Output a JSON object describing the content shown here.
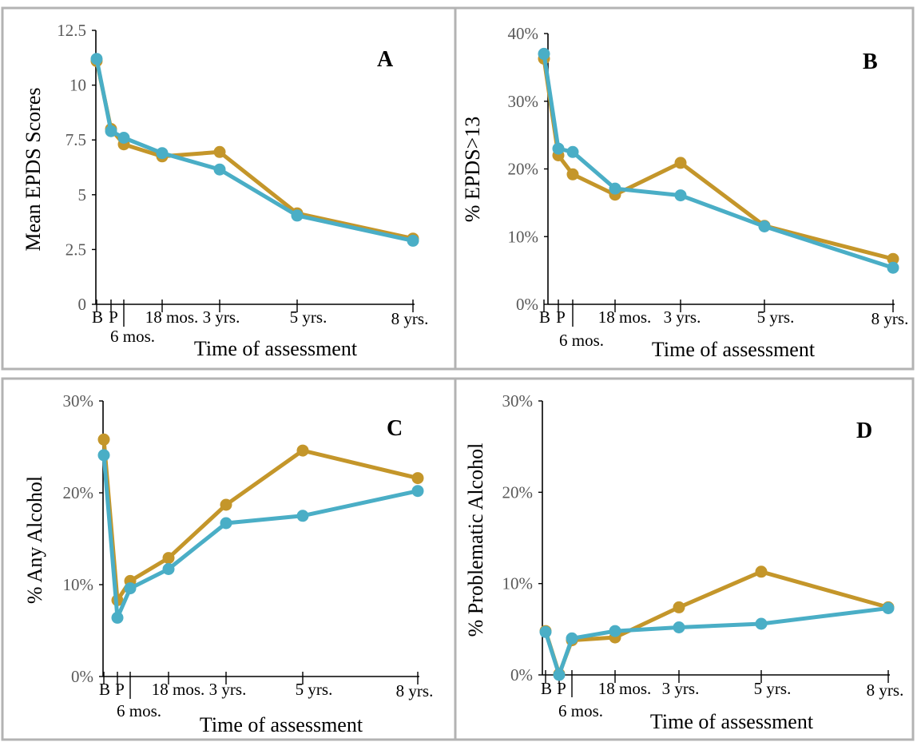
{
  "series_colors": {
    "alcohol_group": "#c4962a",
    "comparison_group": "#4aaec6"
  },
  "chart_data": [
    {
      "panel": "A",
      "type": "line",
      "ylabel": "Mean EPDS Scores",
      "xlabel": "Time of assessment",
      "yticks": [
        "0",
        "2.5",
        "5",
        "7.5",
        "10",
        "12.5"
      ],
      "ylim": [
        0,
        12.5
      ],
      "x_tick_labels": [
        "B",
        "P",
        "6 mos.",
        "18 mos.",
        "3 yrs.",
        "5 yrs.",
        "8 yrs."
      ],
      "series": [
        {
          "color": "#c4962a",
          "values": [
            11.1,
            8.0,
            7.3,
            6.75,
            6.95,
            4.15,
            3.0
          ]
        },
        {
          "color": "#4aaec6",
          "values": [
            11.2,
            7.9,
            7.6,
            6.9,
            6.15,
            4.05,
            2.9
          ]
        }
      ]
    },
    {
      "panel": "B",
      "type": "line",
      "ylabel": "% EPDS>13",
      "xlabel": "Time of assessment",
      "yticks": [
        "0%",
        "10%",
        "20%",
        "30%",
        "40%"
      ],
      "ylim": [
        0,
        40
      ],
      "x_tick_labels": [
        "B",
        "P",
        "6 mos.",
        "18 mos.",
        "3 yrs.",
        "5 yrs.",
        "8 yrs."
      ],
      "series": [
        {
          "color": "#c4962a",
          "values": [
            36.3,
            22.0,
            19.2,
            16.2,
            20.9,
            11.6,
            6.7
          ]
        },
        {
          "color": "#4aaec6",
          "values": [
            37.0,
            23.0,
            22.5,
            17.1,
            16.1,
            11.5,
            5.4
          ]
        }
      ]
    },
    {
      "panel": "C",
      "type": "line",
      "ylabel": "% Any Alcohol",
      "xlabel": "Time of assessment",
      "yticks": [
        "0%",
        "10%",
        "20%",
        "30%"
      ],
      "ylim": [
        0,
        30
      ],
      "x_tick_labels": [
        "B",
        "P",
        "6 mos.",
        "18 mos.",
        "3 yrs.",
        "5 yrs.",
        "8 yrs."
      ],
      "series": [
        {
          "color": "#c4962a",
          "values": [
            25.8,
            8.3,
            10.4,
            12.9,
            18.7,
            24.6,
            21.6
          ]
        },
        {
          "color": "#4aaec6",
          "values": [
            24.1,
            6.4,
            9.6,
            11.7,
            16.7,
            17.5,
            20.2
          ]
        }
      ]
    },
    {
      "panel": "D",
      "type": "line",
      "ylabel": "% Problematic Alcohol",
      "xlabel": "Time of assessment",
      "yticks": [
        "0%",
        "10%",
        "20%",
        "30%"
      ],
      "ylim": [
        0,
        30
      ],
      "x_tick_labels": [
        "B",
        "P",
        "6 mos.",
        "18 mos.",
        "3 yrs.",
        "5 yrs.",
        "8 yrs."
      ],
      "series": [
        {
          "color": "#c4962a",
          "values": [
            4.8,
            0.1,
            3.8,
            4.1,
            7.4,
            11.3,
            7.4
          ]
        },
        {
          "color": "#4aaec6",
          "values": [
            4.7,
            0.0,
            4.0,
            4.8,
            5.2,
            5.6,
            7.3
          ]
        }
      ]
    }
  ]
}
